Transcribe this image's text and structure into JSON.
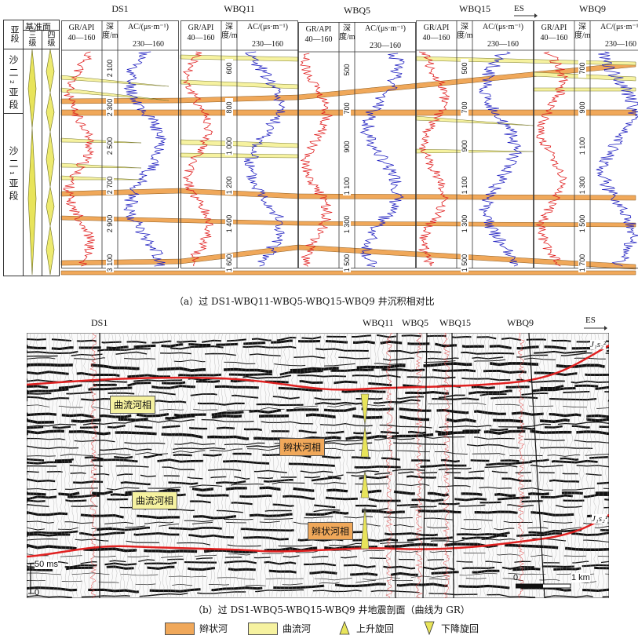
{
  "panel_a": {
    "caption": "（a）过 DS1-WBQ11-WBQ5-WBQ15-WBQ9 井沉积相对比",
    "strat_headers": {
      "subsegment": "亚段",
      "base_level": "基准面",
      "third_order": "三级",
      "fourth_order": "四级"
    },
    "subsegments": [
      "沙二₂亚段",
      "沙二₁亚段"
    ],
    "direction": "ES",
    "wells": [
      {
        "name": "DS1",
        "gr_header": "GR/API",
        "gr_range": "40—160",
        "depth_header": "深度/m",
        "aci_header": "AC/(μs·m⁻¹)",
        "aci_range": "230—160",
        "depths": [
          "2 100",
          "2 300",
          "2 500",
          "2 700",
          "2 900",
          "3 100"
        ]
      },
      {
        "name": "WBQ11",
        "gr_header": "GR/API",
        "gr_range": "40—160",
        "depth_header": "深度/m",
        "aci_header": "AC/(μs·m⁻¹)",
        "aci_range": "230—160",
        "depths": [
          "600",
          "800",
          "1 000",
          "1 200",
          "1 400",
          "1 600"
        ]
      },
      {
        "name": "WBQ5",
        "gr_header": "GR/API",
        "gr_range": "40—160",
        "depth_header": "深度/m",
        "aci_header": "AC/(μs·m⁻¹)",
        "aci_range": "230—160",
        "depths": [
          "500",
          "700",
          "900",
          "1 100",
          "1 300",
          "1 500"
        ]
      },
      {
        "name": "WBQ15",
        "gr_header": "GR/API",
        "gr_range": "40—160",
        "depth_header": "深度/m",
        "aci_header": "AC/(μs·m⁻¹)",
        "aci_range": "230—160",
        "depths": [
          "500",
          "700",
          "900",
          "1 100",
          "1 300",
          "1 500"
        ]
      },
      {
        "name": "WBQ9",
        "gr_header": "GR/API",
        "gr_range": "40—160",
        "depth_header": "深度/m",
        "aci_header": "AC/(μs·m⁻¹)",
        "aci_range": "230—160",
        "depths": [
          "700",
          "900",
          "1 100",
          "1 300",
          "1 500",
          "1 700"
        ]
      }
    ]
  },
  "panel_b": {
    "caption": "（b）过 DS1-WBQ5-WBQ15-WBQ9 井地震剖面（曲线为 GR）",
    "well_labels": [
      "DS1",
      "WBQ11",
      "WBQ5",
      "WBQ15",
      "WBQ9"
    ],
    "direction": "ES",
    "horizons": [
      "J₁s₂²",
      "J₁s₂¹"
    ],
    "callouts": [
      "曲流河相",
      "辫状河相",
      "曲流河相",
      "辫状河相"
    ],
    "time_scale": "50 ms",
    "time_zero": "0",
    "distance_scale": "1 km",
    "distance_zero": "0"
  },
  "legend": [
    {
      "label": "辫状河",
      "color": "#F0A85A"
    },
    {
      "label": "曲流河",
      "color": "#F6F2A0"
    },
    {
      "label": "上升旋回"
    },
    {
      "label": "下降旋回"
    }
  ],
  "colors": {
    "braided": "#F0A85A",
    "meander": "#F6F2A0",
    "gr_curve": "#E02020",
    "ac_curve": "#2020C0",
    "horizon": "#E02020"
  }
}
